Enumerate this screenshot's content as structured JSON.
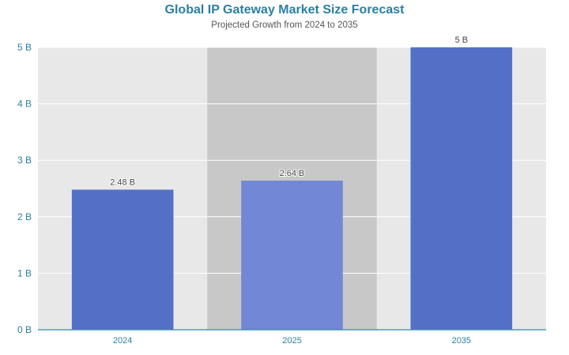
{
  "chart_data": {
    "type": "bar",
    "title": "Global IP Gateway Market Size Forecast",
    "subtitle": "Projected Growth from 2024 to 2035",
    "categories": [
      "2024",
      "2025",
      "2035"
    ],
    "values": [
      2.48,
      2.64,
      5
    ],
    "data_labels": [
      "2.48 B",
      "2.64 B",
      "5 B"
    ],
    "y_ticks": [
      "0 B",
      "1 B",
      "2 B",
      "3 B",
      "4 B",
      "5 B"
    ],
    "ylim": [
      0,
      5
    ],
    "xlabel": "",
    "ylabel": "",
    "grid": true,
    "highlighted_category": "2025",
    "colors": {
      "bar": "#5470c6",
      "bar_highlight": "#7088d6",
      "plot_bg": "#e8e8e8",
      "band_highlight": "#c8c8c8",
      "axis_text": "#2a7fa3"
    }
  }
}
